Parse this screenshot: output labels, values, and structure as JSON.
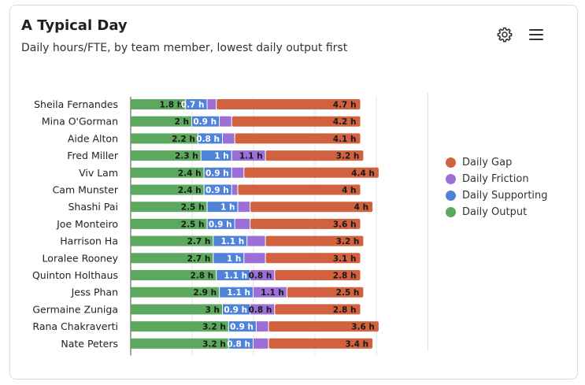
{
  "header": {
    "title": "A Typical Day",
    "subtitle": "Daily hours/FTE, by team member, lowest daily output first",
    "settings_icon": "gear-icon",
    "menu_icon": "hamburger-menu-icon"
  },
  "colors": {
    "output": "#5ba85e",
    "supporting": "#4f83d9",
    "friction": "#9b6fd6",
    "gap": "#d1613f"
  },
  "legend": [
    {
      "name": "Daily Gap",
      "color": "#d1613f"
    },
    {
      "name": "Daily Friction",
      "color": "#9b6fd6"
    },
    {
      "name": "Daily Supporting",
      "color": "#4f83d9"
    },
    {
      "name": "Daily Output",
      "color": "#5ba85e"
    }
  ],
  "chart_data": {
    "type": "bar",
    "orientation": "horizontal",
    "stacked": true,
    "categories": [
      "Sheila Fernandes",
      "Mina O'Gorman",
      "Aide Alton",
      "Fred Miller",
      "Viv Lam",
      "Cam Munster",
      "Shashi Pai",
      "Joe Monteiro",
      "Harrison Ha",
      "Loralee Rooney",
      "Quinton Holthaus",
      "Jess Phan",
      "Germaine Zuniga",
      "Rana Chakraverti",
      "Nate Peters"
    ],
    "series": [
      {
        "name": "Daily Output",
        "values": [
          1.8,
          2,
          2.2,
          2.3,
          2.4,
          2.4,
          2.5,
          2.5,
          2.7,
          2.7,
          2.8,
          2.9,
          3,
          3.2,
          3.2
        ],
        "labels": [
          "1.8 h",
          "2 h",
          "2.2 h",
          "2.3 h",
          "2.4 h",
          "2.4 h",
          "2.5 h",
          "2.5 h",
          "2.7 h",
          "2.7 h",
          "2.8 h",
          "2.9 h",
          "3 h",
          "3.2 h",
          "3.2 h"
        ]
      },
      {
        "name": "Daily Supporting",
        "values": [
          0.7,
          0.9,
          0.8,
          1,
          0.9,
          0.9,
          1,
          0.9,
          1.1,
          1,
          1.1,
          1.1,
          0.9,
          0.9,
          0.8
        ],
        "labels": [
          "0.7 h",
          "0.9 h",
          "0.8 h",
          "1 h",
          "0.9 h",
          "0.9 h",
          "1 h",
          "0.9 h",
          "1.1 h",
          "1 h",
          "1.1 h",
          "1.1 h",
          "0.9 h",
          "0.9 h",
          "0.8 h"
        ]
      },
      {
        "name": "Daily Friction",
        "values": [
          0.3,
          0.4,
          0.4,
          1.1,
          0.4,
          0.2,
          0.4,
          0.5,
          0.6,
          0.7,
          0.8,
          1.1,
          0.8,
          0.4,
          0.5
        ],
        "labels": [
          "",
          "",
          "",
          "1.1 h",
          "",
          "",
          "",
          "",
          "",
          "",
          "0.8 h",
          "1.1 h",
          "0.8 h",
          "",
          ""
        ]
      },
      {
        "name": "Daily Gap",
        "values": [
          4.7,
          4.2,
          4.1,
          3.2,
          4.4,
          4,
          4,
          3.6,
          3.2,
          3.1,
          2.8,
          2.5,
          2.8,
          3.6,
          3.4
        ],
        "labels": [
          "4.7 h",
          "4.2 h",
          "4.1 h",
          "3.2 h",
          "4.4 h",
          "4 h",
          "4 h",
          "3.6 h",
          "3.2 h",
          "3.1 h",
          "2.8 h",
          "2.5 h",
          "2.8 h",
          "3.6 h",
          "3.4 h"
        ]
      }
    ],
    "xlim": [
      0,
      8
    ],
    "grid": true,
    "legend_position": "right"
  }
}
